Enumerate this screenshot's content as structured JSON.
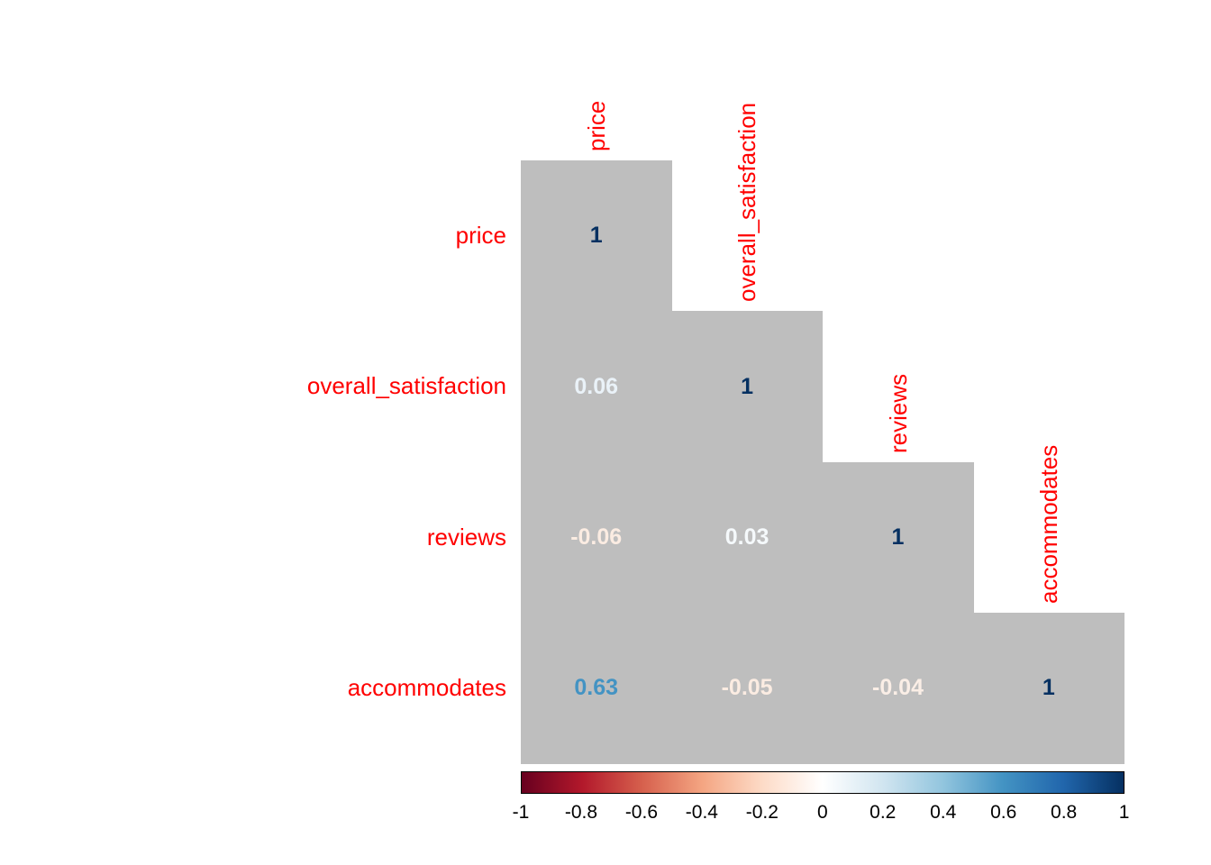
{
  "chart_data": {
    "type": "heatmap",
    "title": "",
    "subtitle": "",
    "variables": [
      "price",
      "overall_satisfaction",
      "reviews",
      "accommodates"
    ],
    "matrix": [
      [
        1,
        null,
        null,
        null
      ],
      [
        0.06,
        1,
        null,
        null
      ],
      [
        -0.06,
        0.03,
        1,
        null
      ],
      [
        0.63,
        -0.05,
        -0.04,
        1
      ]
    ],
    "cells": [
      {
        "row": 0,
        "col": 0,
        "label": "1",
        "value": 1,
        "color": "#053061"
      },
      {
        "row": 1,
        "col": 0,
        "label": "0.06",
        "value": 0.06,
        "color": "#eaf2f8"
      },
      {
        "row": 1,
        "col": 1,
        "label": "1",
        "value": 1,
        "color": "#053061"
      },
      {
        "row": 2,
        "col": 0,
        "label": "-0.06",
        "value": -0.06,
        "color": "#fbece2"
      },
      {
        "row": 2,
        "col": 1,
        "label": "0.03",
        "value": 0.03,
        "color": "#f5f9fb"
      },
      {
        "row": 2,
        "col": 2,
        "label": "1",
        "value": 1,
        "color": "#053061"
      },
      {
        "row": 3,
        "col": 0,
        "label": "0.63",
        "value": 0.63,
        "color": "#4393c3"
      },
      {
        "row": 3,
        "col": 1,
        "label": "-0.05",
        "value": -0.05,
        "color": "#fbece2"
      },
      {
        "row": 3,
        "col": 2,
        "label": "-0.04",
        "value": -0.04,
        "color": "#faeee6"
      },
      {
        "row": 3,
        "col": 3,
        "label": "1",
        "value": 1,
        "color": "#053061"
      }
    ],
    "shape": "lower-triangle",
    "cell_background": "#bebebe",
    "label_color": "#ff0000",
    "page_background": "#ffffff",
    "grid": false,
    "legend_position": "bottom",
    "colorbar": {
      "min": -1,
      "max": 1,
      "ticks": [
        "-1",
        "-0.8",
        "-0.6",
        "-0.4",
        "-0.2",
        "0",
        "0.2",
        "0.4",
        "0.6",
        "0.8",
        "1"
      ],
      "gradient": [
        "#67001F",
        "#B2182B",
        "#D6604D",
        "#F4A582",
        "#FDDBC7",
        "#FFFFFF",
        "#D1E5F0",
        "#92C5DE",
        "#4393C3",
        "#2166AC",
        "#053061"
      ]
    }
  }
}
